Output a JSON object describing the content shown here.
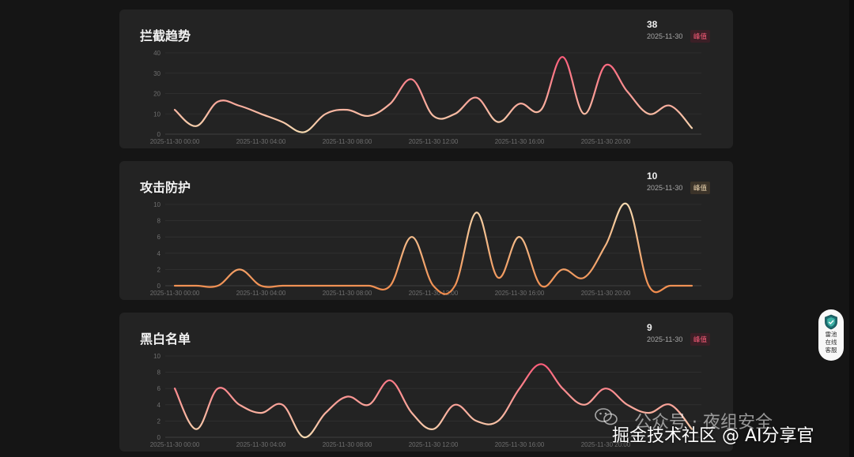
{
  "panels": [
    {
      "title": "拦截趋势",
      "peak": {
        "value": "38",
        "date": "2025-11-30",
        "badge": "峰值",
        "badge_style": "red"
      },
      "gradient": [
        "#ff5d7b",
        "#f6d9b0"
      ]
    },
    {
      "title": "攻击防护",
      "peak": {
        "value": "10",
        "date": "2025-11-30",
        "badge": "峰值",
        "badge_style": "beige"
      },
      "gradient": [
        "#f6d9b0",
        "#f08a4b"
      ]
    },
    {
      "title": "黑白名单",
      "peak": {
        "value": "9",
        "date": "2025-11-30",
        "badge": "峰值",
        "badge_style": "red"
      },
      "gradient": [
        "#ff5d7b",
        "#f6d9b0"
      ]
    }
  ],
  "float_widget": {
    "label": "雷池在线客服",
    "icon": "shield-icon"
  },
  "watermark": {
    "line1": "公众号 · 夜组安全",
    "line2": "掘金技术社区 @ AI分享官",
    "icon": "wechat-icon"
  },
  "chart_data": [
    {
      "type": "line",
      "title": "拦截趋势",
      "x": [
        "2025-11-30 00:00",
        "2025-11-30 01:00",
        "2025-11-30 02:00",
        "2025-11-30 03:00",
        "2025-11-30 04:00",
        "2025-11-30 05:00",
        "2025-11-30 06:00",
        "2025-11-30 07:00",
        "2025-11-30 08:00",
        "2025-11-30 09:00",
        "2025-11-30 10:00",
        "2025-11-30 11:00",
        "2025-11-30 12:00",
        "2025-11-30 13:00",
        "2025-11-30 14:00",
        "2025-11-30 15:00",
        "2025-11-30 16:00",
        "2025-11-30 17:00",
        "2025-11-30 18:00",
        "2025-11-30 19:00",
        "2025-11-30 20:00",
        "2025-11-30 21:00",
        "2025-11-30 22:00",
        "2025-11-30 23:00",
        "2025-11-30 24:00"
      ],
      "xticks": [
        "2025-11-30 00:00",
        "2025-11-30 04:00",
        "2025-11-30 08:00",
        "2025-11-30 12:00",
        "2025-11-30 16:00",
        "2025-11-30 20:00"
      ],
      "xtick_indices": [
        0,
        4,
        8,
        12,
        16,
        20
      ],
      "values": [
        12,
        4,
        16,
        14,
        10,
        6,
        1,
        10,
        12,
        9,
        15,
        27,
        9,
        10,
        18,
        6,
        15,
        12,
        38,
        10,
        34,
        21,
        10,
        14,
        3
      ],
      "ylim": [
        0,
        40
      ],
      "yticks": [
        "0",
        "10",
        "20",
        "30",
        "40"
      ],
      "grid": true
    },
    {
      "type": "line",
      "title": "攻击防护",
      "x": [
        "2025-11-30 00:00",
        "2025-11-30 01:00",
        "2025-11-30 02:00",
        "2025-11-30 03:00",
        "2025-11-30 04:00",
        "2025-11-30 05:00",
        "2025-11-30 06:00",
        "2025-11-30 07:00",
        "2025-11-30 08:00",
        "2025-11-30 09:00",
        "2025-11-30 10:00",
        "2025-11-30 11:00",
        "2025-11-30 12:00",
        "2025-11-30 13:00",
        "2025-11-30 14:00",
        "2025-11-30 15:00",
        "2025-11-30 16:00",
        "2025-11-30 17:00",
        "2025-11-30 18:00",
        "2025-11-30 19:00",
        "2025-11-30 20:00",
        "2025-11-30 21:00",
        "2025-11-30 22:00",
        "2025-11-30 23:00",
        "2025-11-30 24:00"
      ],
      "xticks": [
        "2025-11-30 00:00",
        "2025-11-30 04:00",
        "2025-11-30 08:00",
        "2025-11-30 12:00",
        "2025-11-30 16:00",
        "2025-11-30 20:00"
      ],
      "xtick_indices": [
        0,
        4,
        8,
        12,
        16,
        20
      ],
      "values": [
        0,
        0,
        0,
        2,
        0,
        0,
        0,
        0,
        0,
        0,
        0,
        6,
        0,
        0,
        9,
        1,
        6,
        0,
        2,
        1,
        5,
        10,
        0,
        0,
        0
      ],
      "ylim": [
        0,
        10
      ],
      "yticks": [
        "0",
        "2",
        "4",
        "6",
        "8",
        "10"
      ],
      "grid": true
    },
    {
      "type": "line",
      "title": "黑白名单",
      "x": [
        "2025-11-30 00:00",
        "2025-11-30 01:00",
        "2025-11-30 02:00",
        "2025-11-30 03:00",
        "2025-11-30 04:00",
        "2025-11-30 05:00",
        "2025-11-30 06:00",
        "2025-11-30 07:00",
        "2025-11-30 08:00",
        "2025-11-30 09:00",
        "2025-11-30 10:00",
        "2025-11-30 11:00",
        "2025-11-30 12:00",
        "2025-11-30 13:00",
        "2025-11-30 14:00",
        "2025-11-30 15:00",
        "2025-11-30 16:00",
        "2025-11-30 17:00",
        "2025-11-30 18:00",
        "2025-11-30 19:00",
        "2025-11-30 20:00",
        "2025-11-30 21:00",
        "2025-11-30 22:00",
        "2025-11-30 23:00",
        "2025-11-30 24:00"
      ],
      "xticks": [
        "2025-11-30 00:00",
        "2025-11-30 04:00",
        "2025-11-30 08:00",
        "2025-11-30 12:00",
        "2025-11-30 16:00",
        "2025-11-30 20:00"
      ],
      "xtick_indices": [
        0,
        4,
        8,
        12,
        16,
        20
      ],
      "values": [
        6,
        1,
        6,
        4,
        3,
        4,
        0,
        3,
        5,
        4,
        7,
        3,
        1,
        4,
        2,
        2,
        6,
        9,
        6,
        4,
        6,
        4,
        3,
        4,
        1
      ],
      "ylim": [
        0,
        10
      ],
      "yticks": [
        "0",
        "2",
        "4",
        "6",
        "8",
        "10"
      ],
      "grid": true
    }
  ]
}
